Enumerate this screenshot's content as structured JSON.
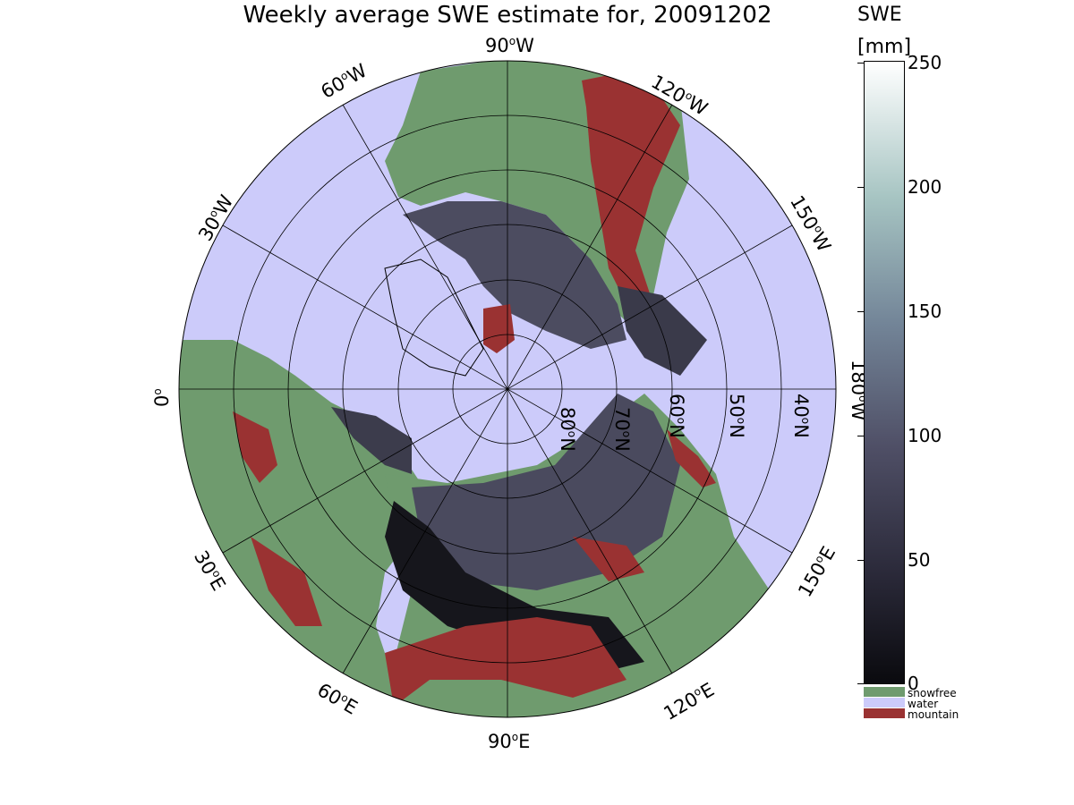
{
  "title": "Weekly average SWE estimate for, 20091202",
  "longitude_labels": {
    "w90": "90",
    "w60": "60",
    "w120": "120",
    "w30": "30",
    "w150": "150",
    "w180": "180",
    "zero": "0",
    "e30": "30",
    "e150": "150",
    "e60": "60",
    "e120": "120",
    "e90": "90",
    "suffix_w": "W",
    "suffix_e": "E",
    "deg": "o"
  },
  "latitude_labels": {
    "n80": "80",
    "n70": "70",
    "n60": "60",
    "n50": "50",
    "n40": "40",
    "suffix": "N",
    "deg": "o"
  },
  "colorbar": {
    "title_line1": "SWE",
    "title_line2": "[mm]",
    "ticks": [
      "250",
      "200",
      "150",
      "100",
      "50",
      "0"
    ],
    "range_mm": [
      0,
      250
    ],
    "colors": [
      "#0a0a0e",
      "#2b2a3a",
      "#4f4f66",
      "#738598",
      "#a6c4c2",
      "#ffffff"
    ]
  },
  "categories": [
    {
      "label": "snowfree",
      "color": "#6f9b6e"
    },
    {
      "label": "water",
      "color": "#cccbfa"
    },
    {
      "label": "mountain",
      "color": "#9a3232"
    }
  ]
}
